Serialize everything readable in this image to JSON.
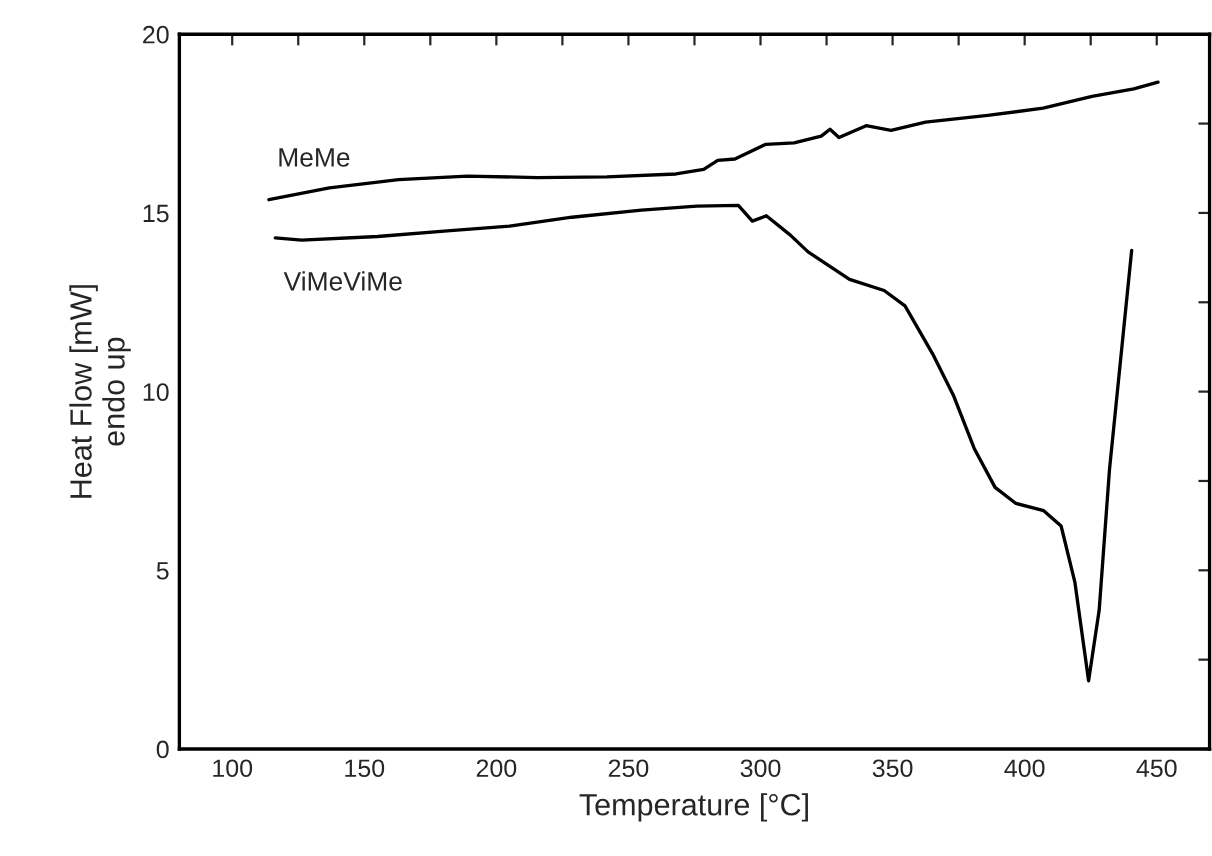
{
  "chart_data": {
    "type": "line",
    "xlabel": "Temperature [°C]",
    "ylabel": "Heat Flow [mW]\nendo up",
    "xlim": [
      80,
      470
    ],
    "ylim": [
      0,
      20
    ],
    "xticks": [
      100,
      {
        "value": 125,
        "label": null
      },
      150,
      {
        "value": 175,
        "label": null
      },
      200,
      {
        "value": 225,
        "label": null
      },
      250,
      {
        "value": 275,
        "label": null
      },
      300,
      {
        "value": 325,
        "label": null
      },
      350,
      {
        "value": 375,
        "label": null
      },
      400,
      {
        "value": 425,
        "label": null
      },
      450
    ],
    "yticks": [
      0,
      {
        "value": 2.5,
        "label": null
      },
      5,
      {
        "value": 7.5,
        "label": null
      },
      10,
      {
        "value": 12.5,
        "label": null
      },
      15,
      {
        "value": 17.5,
        "label": null
      },
      20
    ],
    "grid": false,
    "legend": false,
    "series": [
      {
        "name": "MeMe",
        "color": "#000000",
        "x": [
          113.9,
          136.8,
          163,
          189,
          215.5,
          241.8,
          268,
          278.5,
          283.8,
          290.3,
          302,
          312.7,
          323,
          326.3,
          329.7,
          340,
          349.4,
          362.5,
          386,
          407,
          425.5,
          441.3,
          450.5
        ],
        "values": [
          15.37,
          15.7,
          15.93,
          16.03,
          15.99,
          16.01,
          16.09,
          16.22,
          16.47,
          16.51,
          16.92,
          16.96,
          17.15,
          17.34,
          17.11,
          17.44,
          17.31,
          17.54,
          17.73,
          17.93,
          18.26,
          18.47,
          18.66
        ]
      },
      {
        "name": "ViMeViMe",
        "color": "#000000",
        "x": [
          116.3,
          126.3,
          155,
          181.4,
          205,
          228.6,
          254.9,
          275.9,
          291.6,
          296.9,
          302.2,
          311.3,
          318,
          333.7,
          346.8,
          354.7,
          365.2,
          373,
          380.9,
          388.8,
          396.7,
          407.2,
          413.8,
          419,
          424.2,
          428.2,
          432.1,
          440.5
        ],
        "values": [
          14.3,
          14.24,
          14.34,
          14.5,
          14.63,
          14.88,
          15.08,
          15.19,
          15.21,
          14.77,
          14.92,
          14.38,
          13.91,
          13.14,
          12.83,
          12.4,
          11.05,
          9.9,
          8.41,
          7.32,
          6.87,
          6.67,
          6.24,
          4.67,
          1.91,
          3.88,
          7.81,
          13.95
        ]
      }
    ]
  }
}
